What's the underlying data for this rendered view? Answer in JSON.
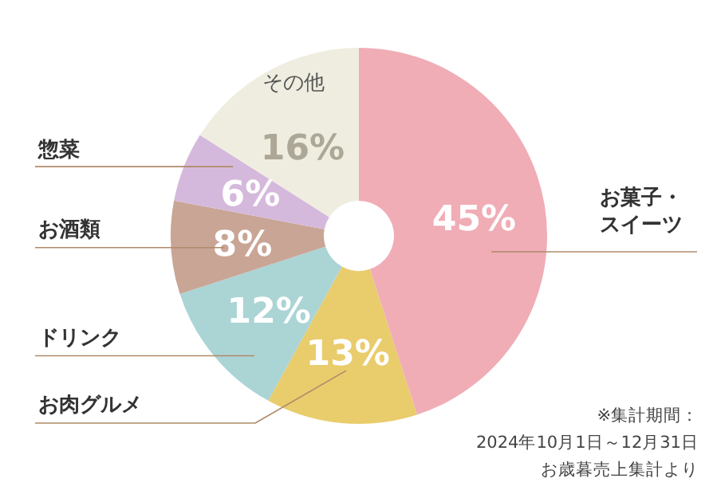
{
  "chart_data": {
    "type": "donut",
    "categories": [
      "お菓子・スイーツ",
      "お肉グルメ",
      "ドリンク",
      "お酒類",
      "惣菜",
      "その他"
    ],
    "values": [
      45,
      13,
      12,
      8,
      6,
      16
    ],
    "value_labels": [
      "45%",
      "13%",
      "12%",
      "8%",
      "6%",
      "16%"
    ],
    "colors": [
      "#f0adb6",
      "#e9cc6c",
      "#abd4d5",
      "#c9a596",
      "#d5b9dc",
      "#efede0"
    ],
    "annotations": [
      "※集計期間：",
      "2024年10月1日～12月31日",
      "お歳暮売上集計より"
    ]
  }
}
